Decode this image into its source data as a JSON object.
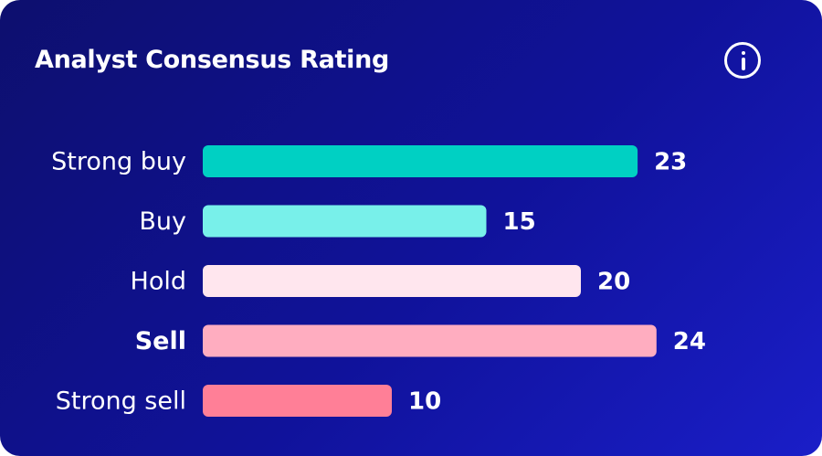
{
  "title": "Analyst Consensus Rating",
  "info_icon": "info-icon",
  "chart_data": {
    "type": "bar",
    "orientation": "horizontal",
    "categories": [
      "Strong buy",
      "Buy",
      "Hold",
      "Sell",
      "Strong sell"
    ],
    "values": [
      23,
      15,
      20,
      24,
      10
    ],
    "highlighted": "Sell",
    "colors": [
      "#00d0c3",
      "#78f0ea",
      "#ffe6ee",
      "#ffadc0",
      "#ff7f97"
    ],
    "grid": false,
    "legend": "none"
  }
}
